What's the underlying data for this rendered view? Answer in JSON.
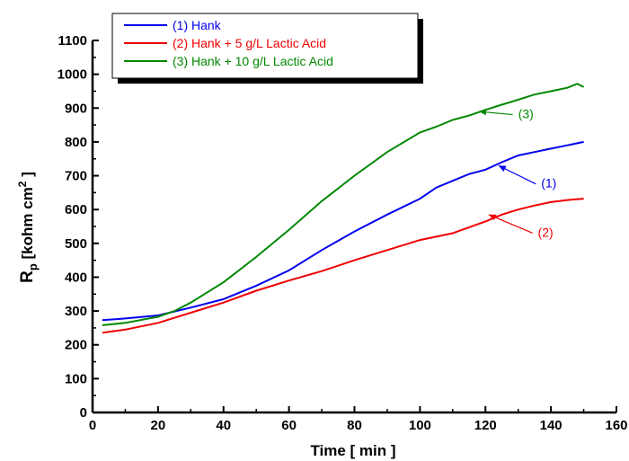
{
  "chart_data": {
    "type": "line",
    "xlabel": "Time [ min ]",
    "ylabel_main": "R",
    "ylabel_sub": "p",
    "ylabel_rest": " [kohm cm",
    "ylabel_sup": "2",
    "ylabel_end": " ]",
    "xlim": [
      0,
      160
    ],
    "ylim": [
      0,
      1100
    ],
    "xticks": [
      "0",
      "20",
      "40",
      "60",
      "80",
      "100",
      "120",
      "140",
      "160"
    ],
    "yticks": [
      "0",
      "100",
      "200",
      "300",
      "400",
      "500",
      "600",
      "700",
      "800",
      "900",
      "1000",
      "1100"
    ],
    "grid": false,
    "legend_position": "top-left",
    "series": [
      {
        "name": "(1) Hank",
        "color": "#0000ee",
        "x": [
          3,
          10,
          20,
          30,
          40,
          50,
          60,
          70,
          80,
          90,
          100,
          105,
          110,
          115,
          120,
          125,
          130,
          135,
          140,
          145,
          150
        ],
        "y": [
          273,
          278,
          287,
          310,
          335,
          375,
          420,
          480,
          535,
          585,
          632,
          665,
          685,
          705,
          718,
          740,
          760,
          770,
          780,
          790,
          800
        ]
      },
      {
        "name": "(2) Hank + 5 g/L Lactic Acid",
        "color": "#ee0000",
        "x": [
          3,
          10,
          20,
          30,
          40,
          50,
          60,
          70,
          80,
          90,
          100,
          110,
          120,
          125,
          130,
          135,
          140,
          145,
          150
        ],
        "y": [
          236,
          245,
          265,
          295,
          325,
          360,
          390,
          418,
          450,
          480,
          510,
          530,
          565,
          585,
          600,
          612,
          622,
          628,
          632
        ]
      },
      {
        "name": "(3) Hank + 10 g/L Lactic Acid",
        "color": "#008800",
        "x": [
          3,
          10,
          20,
          25,
          30,
          40,
          50,
          60,
          70,
          80,
          90,
          100,
          105,
          110,
          115,
          120,
          125,
          130,
          135,
          140,
          145,
          148,
          150
        ],
        "y": [
          258,
          265,
          283,
          300,
          325,
          385,
          460,
          540,
          625,
          700,
          770,
          828,
          845,
          865,
          878,
          895,
          910,
          925,
          940,
          950,
          960,
          972,
          962
        ]
      }
    ],
    "annotations": [
      {
        "text": "(3)",
        "series": 2,
        "at_x": 118,
        "at_y": 890,
        "label_x": 130,
        "label_y": 870
      },
      {
        "text": "(1)",
        "series": 0,
        "at_x": 124,
        "at_y": 730,
        "label_x": 137,
        "label_y": 665
      },
      {
        "text": "(2)",
        "series": 1,
        "at_x": 121,
        "at_y": 585,
        "label_x": 136,
        "label_y": 520
      }
    ]
  }
}
